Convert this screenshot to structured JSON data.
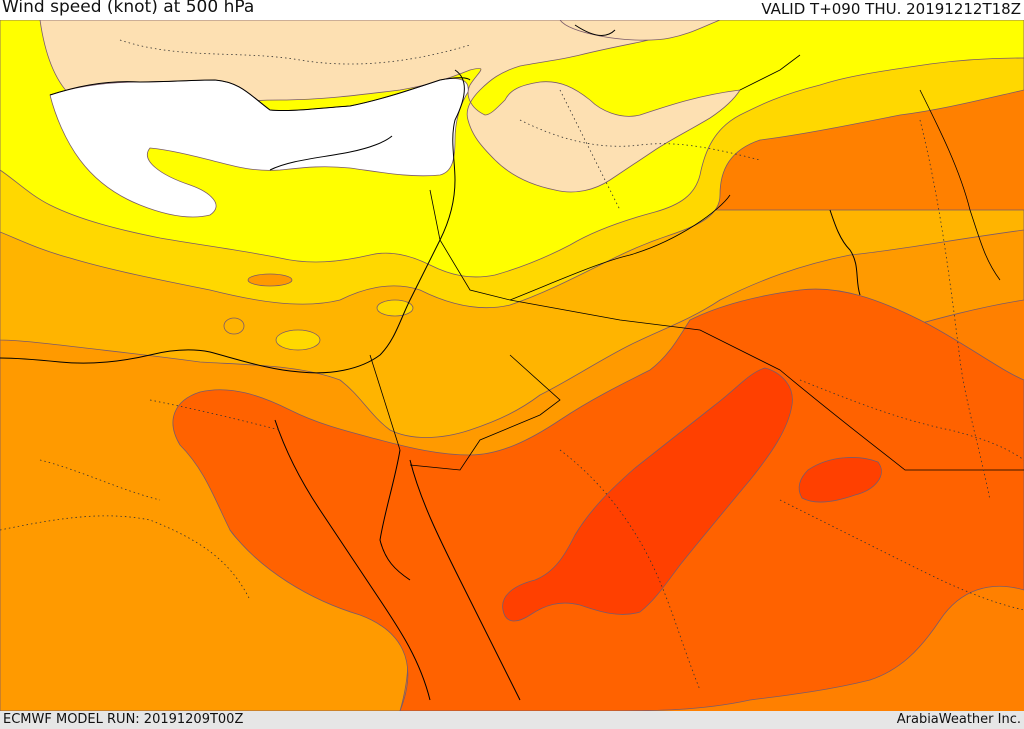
{
  "header": {
    "title": "Wind speed (knot) at 500 hPa",
    "valid": "VALID T+090 THU. 20191212T18Z"
  },
  "footer": {
    "model_run": "ECMWF MODEL RUN: 20191209T00Z",
    "credit": "ArabiaWeather Inc."
  },
  "map": {
    "variable": "wind speed",
    "level": "500 hPa",
    "units": "knot",
    "colors": {
      "sea_unshaded": "#ffffff",
      "land_unshaded": "#fde0b2",
      "band_1": "#ffff00",
      "band_2": "#ffd800",
      "band_3": "#ffb400",
      "band_4": "#ff9a00",
      "band_5": "#ff8000",
      "band_6": "#ff6200",
      "band_7": "#ff4000"
    }
  }
}
